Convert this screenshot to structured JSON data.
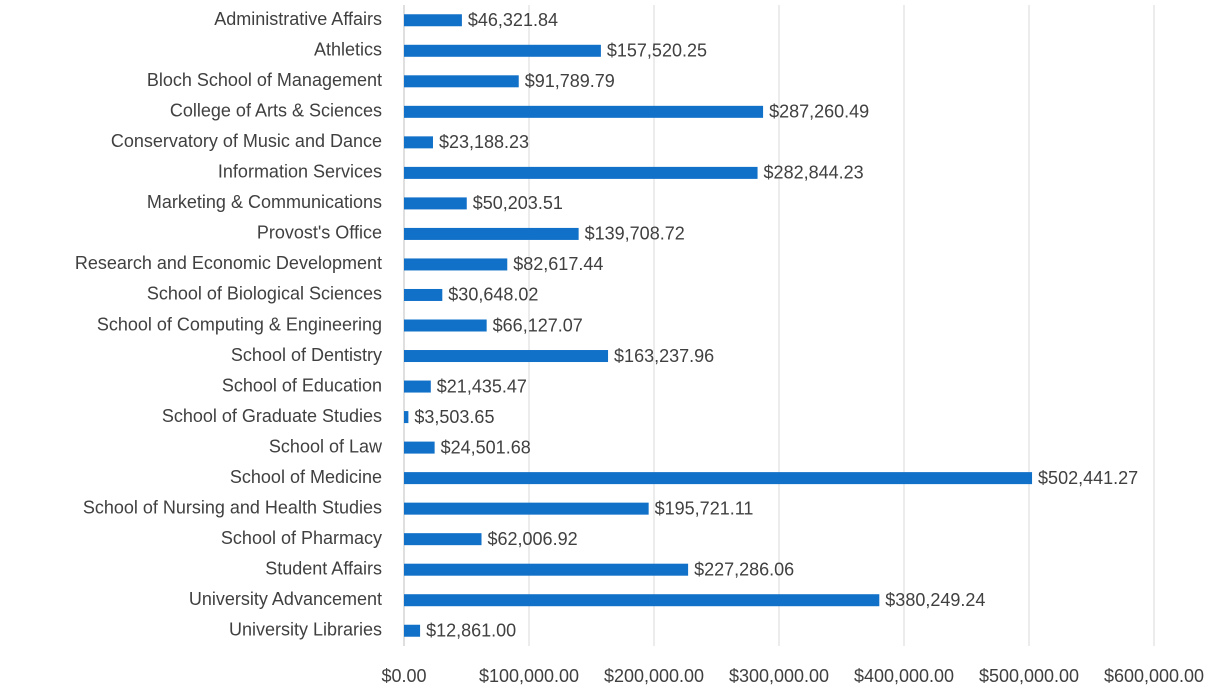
{
  "chart_data": {
    "type": "bar",
    "orientation": "horizontal",
    "categories": [
      "Administrative Affairs",
      "Athletics",
      "Bloch School of Management",
      "College of Arts & Sciences",
      "Conservatory of Music and Dance",
      "Information Services",
      "Marketing & Communications",
      "Provost's Office",
      "Research and Economic Development",
      "School of Biological Sciences",
      "School of Computing & Engineering",
      "School of Dentistry",
      "School of Education",
      "School of Graduate Studies",
      "School of Law",
      "School of Medicine",
      "School of Nursing and Health Studies",
      "School of Pharmacy",
      "Student Affairs",
      "University Advancement",
      "University Libraries"
    ],
    "values": [
      46321.84,
      157520.25,
      91789.79,
      287260.49,
      23188.23,
      282844.23,
      50203.51,
      139708.72,
      82617.44,
      30648.02,
      66127.07,
      163237.96,
      21435.47,
      3503.65,
      24501.68,
      502441.27,
      195721.11,
      62006.92,
      227286.06,
      380249.24,
      12861.0
    ],
    "value_labels": [
      "$46,321.84",
      "$157,520.25",
      "$91,789.79",
      "$287,260.49",
      "$23,188.23",
      "$282,844.23",
      "$50,203.51",
      "$139,708.72",
      "$82,617.44",
      "$30,648.02",
      "$66,127.07",
      "$163,237.96",
      "$21,435.47",
      "$3,503.65",
      "$24,501.68",
      "$502,441.27",
      "$195,721.11",
      "$62,006.92",
      "$227,286.06",
      "$380,249.24",
      "$12,861.00"
    ],
    "color": "#1170c8",
    "xlim": [
      0,
      600000
    ],
    "xticks": [
      {
        "value": 0,
        "label": "$0.00"
      },
      {
        "value": 100000,
        "label": "$100,000.00"
      },
      {
        "value": 200000,
        "label": "$200,000.00"
      },
      {
        "value": 300000,
        "label": "$300,000.00"
      },
      {
        "value": 400000,
        "label": "$400,000.00"
      },
      {
        "value": 500000,
        "label": "$500,000.00"
      },
      {
        "value": 600000,
        "label": "$600,000.00"
      }
    ],
    "grid": true
  }
}
